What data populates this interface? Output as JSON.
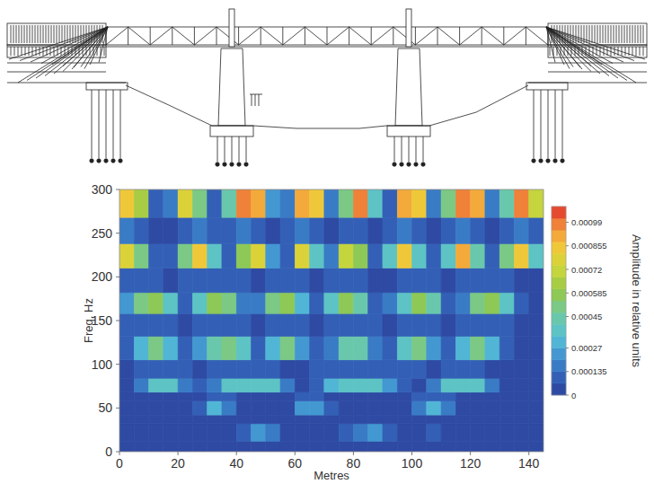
{
  "chart_data": {
    "type": "heatmap",
    "x_label": "Metres",
    "y_label": "Freq, Hz",
    "colorbar_label": "Amplitude in relative units",
    "xlim": [
      0,
      145
    ],
    "xticks": [
      0,
      20,
      40,
      60,
      80,
      100,
      120,
      140
    ],
    "ylim": [
      0,
      300
    ],
    "yticks": [
      0,
      50,
      100,
      150,
      200,
      250,
      300
    ],
    "x_bins": [
      0,
      5,
      10,
      15,
      20,
      25,
      30,
      35,
      40,
      45,
      50,
      55,
      60,
      65,
      70,
      75,
      80,
      85,
      90,
      95,
      100,
      105,
      110,
      115,
      120,
      125,
      130,
      135,
      140,
      145
    ],
    "y_bins": [
      0,
      12,
      32,
      42,
      58,
      68,
      84,
      105,
      132,
      158,
      182,
      210,
      238,
      268,
      300
    ],
    "cells": [
      [
        2e-05,
        2e-05,
        2e-05,
        2e-05,
        2e-05,
        2e-05,
        2e-05,
        3e-05,
        3e-05,
        3e-05,
        2e-05,
        2e-05,
        2e-05,
        2e-05,
        2e-05,
        3e-05,
        3e-05,
        3e-05,
        2e-05,
        2e-05,
        2e-05,
        3e-05,
        2e-05,
        2e-05,
        2e-05,
        2e-05,
        2e-05,
        2e-05,
        2e-05
      ],
      [
        4e-05,
        4e-05,
        4e-05,
        4e-05,
        4e-05,
        4e-05,
        5e-05,
        6e-05,
        0.00012,
        0.00022,
        0.00016,
        6e-05,
        4e-05,
        4e-05,
        5e-05,
        8e-05,
        0.00018,
        0.00022,
        0.0001,
        5e-05,
        5e-05,
        8e-05,
        5e-05,
        4e-05,
        4e-05,
        4e-05,
        4e-05,
        4e-05,
        4e-05
      ],
      [
        4e-05,
        4e-05,
        4e-05,
        4e-05,
        5e-05,
        6e-05,
        6e-05,
        5e-05,
        5e-05,
        6e-05,
        5e-05,
        4e-05,
        5e-05,
        5e-05,
        4e-05,
        4e-05,
        5e-05,
        5e-05,
        4e-05,
        4e-05,
        5e-05,
        6e-05,
        5e-05,
        4e-05,
        4e-05,
        4e-05,
        4e-05,
        4e-05,
        4e-05
      ],
      [
        4e-05,
        4e-05,
        4e-05,
        5e-05,
        6e-05,
        0.00012,
        0.0003,
        0.00018,
        6e-05,
        5e-05,
        5e-05,
        6e-05,
        0.00024,
        0.00026,
        0.0001,
        5e-05,
        5e-05,
        5e-05,
        5e-05,
        6e-05,
        0.00018,
        0.0003,
        0.00016,
        6e-05,
        5e-05,
        4e-05,
        4e-05,
        4e-05,
        4e-05
      ],
      [
        5e-05,
        6e-05,
        6e-05,
        6e-05,
        5e-05,
        6e-05,
        8e-05,
        7e-05,
        6e-05,
        6e-05,
        6e-05,
        5e-05,
        7e-05,
        7e-05,
        6e-05,
        6e-05,
        6e-05,
        5e-05,
        5e-05,
        6e-05,
        7e-05,
        8e-05,
        7e-05,
        6e-05,
        6e-05,
        5e-05,
        5e-05,
        5e-05,
        5e-05
      ],
      [
        5e-05,
        0.00014,
        0.00036,
        0.00038,
        0.00018,
        8e-05,
        0.0002,
        0.00036,
        0.00038,
        0.00036,
        0.00034,
        0.00016,
        6e-05,
        0.00012,
        0.0003,
        0.00038,
        0.00036,
        0.00034,
        0.00022,
        8e-05,
        6e-05,
        0.00016,
        0.00034,
        0.00038,
        0.00034,
        0.00014,
        5e-05,
        5e-05,
        5e-05
      ],
      [
        6e-05,
        8e-05,
        0.0001,
        0.0001,
        7e-05,
        6e-05,
        8e-05,
        0.0001,
        0.0001,
        8e-05,
        8e-05,
        6e-05,
        6e-05,
        7e-05,
        8e-05,
        0.0001,
        0.0001,
        8e-05,
        7e-05,
        8e-05,
        8e-05,
        6e-05,
        8e-05,
        0.0001,
        9e-05,
        6e-05,
        5e-05,
        5e-05,
        5e-05
      ],
      [
        8e-05,
        0.0003,
        0.00048,
        0.0003,
        0.0001,
        0.00022,
        0.00046,
        0.0005,
        0.00036,
        0.00012,
        0.0003,
        0.00048,
        0.00026,
        8e-05,
        0.00018,
        0.00046,
        0.00044,
        0.00014,
        0.0001,
        0.00038,
        0.00048,
        0.00026,
        8e-05,
        0.0003,
        0.00048,
        0.00032,
        0.0001,
        5e-05,
        4e-05
      ],
      [
        7e-05,
        0.0001,
        0.0001,
        8e-05,
        6e-05,
        8e-05,
        0.0001,
        0.0001,
        8e-05,
        6e-05,
        8e-05,
        0.0001,
        8e-05,
        6e-05,
        7e-05,
        0.0001,
        0.0001,
        7e-05,
        6e-05,
        8e-05,
        0.0001,
        8e-05,
        6e-05,
        8e-05,
        0.0001,
        0.0001,
        7e-05,
        5e-05,
        5e-05
      ],
      [
        0.00022,
        0.0005,
        0.00058,
        0.00036,
        0.00012,
        0.00034,
        0.00058,
        0.00052,
        0.00016,
        0.00014,
        0.00048,
        0.0006,
        0.0003,
        0.00012,
        0.00036,
        0.00058,
        0.00046,
        0.00012,
        0.00014,
        0.0004,
        0.00058,
        0.00044,
        0.00012,
        0.00018,
        0.00048,
        0.00058,
        0.0004,
        0.00012,
        6e-05
      ],
      [
        8e-05,
        0.0001,
        8e-05,
        6e-05,
        8e-05,
        0.0001,
        0.00012,
        0.0001,
        7e-05,
        6e-05,
        9e-05,
        0.00012,
        9e-05,
        6e-05,
        8e-05,
        0.00012,
        0.0001,
        6e-05,
        6e-05,
        9e-05,
        0.00012,
        0.0001,
        6e-05,
        8e-05,
        0.00012,
        0.00012,
        8e-05,
        6e-05,
        5e-05
      ],
      [
        0.00078,
        0.0005,
        0.00012,
        0.0001,
        0.0005,
        0.00084,
        0.0004,
        0.00012,
        0.0006,
        0.00076,
        0.00022,
        0.0001,
        0.0008,
        0.0004,
        0.00016,
        0.0007,
        0.0006,
        0.00012,
        0.0004,
        0.00082,
        0.00036,
        0.0001,
        0.0004,
        0.00088,
        0.00046,
        0.0001,
        0.0005,
        0.00082,
        0.00034
      ],
      [
        0.00014,
        0.0001,
        6e-05,
        6e-05,
        0.0001,
        0.00014,
        8e-05,
        8e-05,
        0.00014,
        0.00012,
        6e-05,
        8e-05,
        0.00014,
        0.0001,
        6e-05,
        0.00012,
        0.00012,
        6e-05,
        0.0001,
        0.00014,
        0.0001,
        6e-05,
        0.0001,
        0.00014,
        0.0001,
        6e-05,
        0.00012,
        0.00014,
        8e-05
      ],
      [
        0.00086,
        0.00062,
        0.00012,
        0.0002,
        0.0008,
        0.0005,
        0.00012,
        0.00044,
        0.00098,
        0.00092,
        0.00024,
        0.00018,
        0.00094,
        0.00086,
        0.0002,
        0.00048,
        0.001,
        0.00036,
        0.00012,
        0.0009,
        0.00084,
        0.00016,
        0.00052,
        0.001,
        0.00094,
        0.0002,
        0.00044,
        0.001,
        0.0007
      ]
    ],
    "colorbar_lim": [
      0,
      0.00108
    ],
    "colorbar_ticks": [
      0,
      0.000135,
      0.00027,
      0.00045,
      0.000585,
      0.00072,
      0.000855,
      0.00099
    ]
  }
}
